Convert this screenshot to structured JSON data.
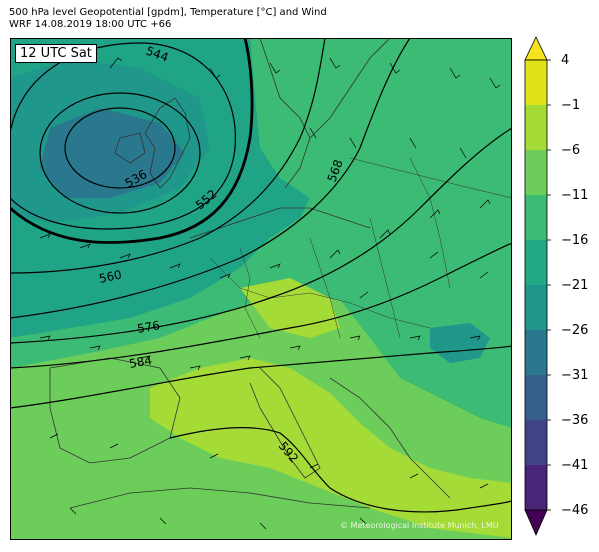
{
  "title_line1": "500 hPa level Geopotential [gpdm], Temperature [°C] and Wind",
  "title_line2": "WRF 14.08.2019 18:00 UTC +66",
  "time_label": "12 UTC Sat",
  "credit": "© Meteorological Institute Munich, LMU",
  "colorbar": {
    "ticks": [
      "4",
      "−1",
      "−6",
      "−11",
      "−16",
      "−21",
      "−26",
      "−31",
      "−36",
      "−41",
      "−46"
    ],
    "colors": [
      "#f5e31f",
      "#dfe318",
      "#a5db36",
      "#6ccd5a",
      "#3cbb75",
      "#22a884",
      "#1f988b",
      "#2a788e",
      "#355f8d",
      "#414487",
      "#482576",
      "#440154"
    ]
  },
  "contour_labels": [
    "544",
    "536",
    "552",
    "560",
    "568",
    "576",
    "584",
    "592"
  ],
  "map_colors": {
    "cold_core": "#3a6a8c",
    "core_mid": "#2a8a8a",
    "teal": "#20a486",
    "green": "#3cbb75",
    "light_green": "#6ccd5a",
    "yellow_green": "#a5db36",
    "coast": "#333333"
  }
}
